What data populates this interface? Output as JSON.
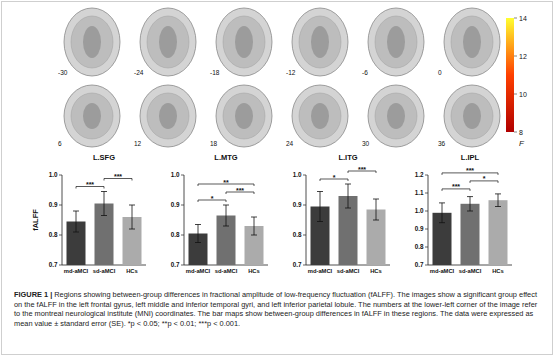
{
  "brain_slices": {
    "slices": [
      -30,
      -24,
      -18,
      -12,
      -6,
      0,
      6,
      12,
      18,
      24,
      30,
      36
    ],
    "colorbar": {
      "range": [
        8,
        14
      ],
      "ticks": [
        8,
        10,
        12,
        14
      ],
      "label": "F"
    }
  },
  "chart_data": [
    {
      "type": "bar",
      "title": "L.SFG",
      "y_label": "fALFF",
      "categories": [
        "md-aMCI",
        "sd-aMCI",
        "HCs"
      ],
      "values": [
        0.845,
        0.905,
        0.86
      ],
      "errors": [
        0.035,
        0.04,
        0.04
      ],
      "colors": [
        "#3c3c3c",
        "#707070",
        "#ababab"
      ],
      "ylim": [
        0.7,
        1
      ],
      "yticks": [
        0.7,
        0.8,
        0.9,
        {
          "value": 1,
          "label": "1.0"
        }
      ],
      "significance": [
        {
          "pair": [
            0,
            1
          ],
          "label": "***"
        },
        {
          "pair": [
            1,
            2
          ],
          "label": "***"
        }
      ]
    },
    {
      "type": "bar",
      "title": "L.MTG",
      "categories": [
        "md-aMCI",
        "sd-aMCI",
        "HCs"
      ],
      "values": [
        0.805,
        0.865,
        0.83
      ],
      "errors": [
        0.03,
        0.035,
        0.03
      ],
      "colors": [
        "#3c3c3c",
        "#707070",
        "#ababab"
      ],
      "ylim": [
        0.7,
        1
      ],
      "yticks": [
        0.7,
        0.8,
        0.9,
        {
          "value": 1,
          "label": "1.0"
        }
      ],
      "significance": [
        {
          "pair": [
            0,
            1
          ],
          "label": "*"
        },
        {
          "pair": [
            1,
            2
          ],
          "label": "***"
        },
        {
          "pair": [
            0,
            2
          ],
          "label": "**"
        }
      ]
    },
    {
      "type": "bar",
      "title": "L.ITG",
      "categories": [
        "md-aMCI",
        "sd-aMCI",
        "HCs"
      ],
      "values": [
        0.895,
        0.93,
        0.885
      ],
      "errors": [
        0.05,
        0.04,
        0.035
      ],
      "colors": [
        "#3c3c3c",
        "#707070",
        "#ababab"
      ],
      "ylim": [
        0.7,
        1
      ],
      "yticks": [
        0.7,
        0.8,
        0.9,
        {
          "value": 1,
          "label": "1.0"
        }
      ],
      "significance": [
        {
          "pair": [
            0,
            1
          ],
          "label": "*"
        },
        {
          "pair": [
            1,
            2
          ],
          "label": "***"
        }
      ]
    },
    {
      "type": "bar",
      "title": "L.IPL",
      "categories": [
        "md-aMCI",
        "sd-aMCI",
        "HCs"
      ],
      "values": [
        0.99,
        1.04,
        1.06
      ],
      "errors": [
        0.055,
        0.04,
        0.035
      ],
      "colors": [
        "#3c3c3c",
        "#707070",
        "#ababab"
      ],
      "ylim": [
        0.7,
        1.2
      ],
      "yticks": [
        0.7,
        0.8,
        0.9,
        {
          "value": 1,
          "label": "1.0"
        },
        1.1,
        1.2
      ],
      "significance": [
        {
          "pair": [
            0,
            1
          ],
          "label": "***"
        },
        {
          "pair": [
            1,
            2
          ],
          "label": "*"
        },
        {
          "pair": [
            0,
            2
          ],
          "label": "***"
        }
      ]
    }
  ],
  "caption": {
    "label": "FIGURE 1 |",
    "text": " Regions showing between-group differences in fractional amplitude of low-frequency fluctuation (fALFF). The images show a significant group effect on the fALFF in the left frontal gyrus, left middle and inferior temporal gyri, and left inferior parietal lobule. The numbers at the lower-left corner of the image refer to the montreal neurological institute (MNI) coordinates. The bar maps show between-group differences in fALFF in these regions. The data were expressed as mean value ± standard error (SE). *p < 0.05; **p < 0.01; ***p < 0.001."
  }
}
